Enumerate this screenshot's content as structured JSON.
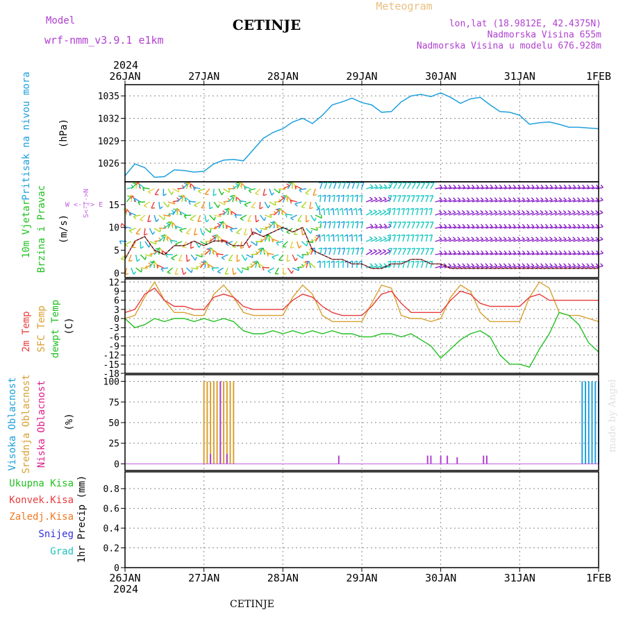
{
  "header": {
    "model_label": "Model",
    "model_name": "wrf-nmm_v3.9.1 e1km",
    "station": "CETINJE",
    "product": "Meteogram",
    "lonlat": "lon,lat (18.9812E, 42.4375N)",
    "altitude": "Nadmorska Visina 655m",
    "model_altitude": "Nadmorska Visina u modelu 676.928m",
    "year_top": "2024",
    "year_bottom": "2024",
    "footer_station": "CETINJE",
    "watermark": "made by Angel"
  },
  "time_axis": {
    "labels": [
      "26JAN",
      "27JAN",
      "28JAN",
      "29JAN",
      "30JAN",
      "31JAN",
      "1FEB"
    ]
  },
  "colors": {
    "pressure": "#1ea0dc",
    "temp2m": "#e83c3c",
    "sfc": "#d8a030",
    "dewpt": "#22c022",
    "violet": "#b040d0",
    "wind_dir_label": "#c060e0",
    "grad": "#20c0c0",
    "snow": "#3030e0",
    "freezing": "#f07820"
  },
  "panels": {
    "pressure": {
      "ylabel_var": "Pritisak na nivou mora",
      "ylabel_unit": "(hPa)",
      "ticks": [
        "1026",
        "1029",
        "1032",
        "1035"
      ]
    },
    "wind": {
      "ylabel_var1": "10m Vjetar",
      "ylabel_var2": "Brzina i Pravac",
      "ylabel_unit": "(m/s)",
      "ticks": [
        "0",
        "5",
        "10",
        "15"
      ],
      "dir_label": "W <-|-> E",
      "dir_label2": "S<-|->N"
    },
    "temp": {
      "ylabel_var1": "2m Temp",
      "ylabel_var2": "SFC Temp",
      "ylabel_var3": "dewpt Temp",
      "ylabel_unit": "(C)",
      "ticks": [
        "-18",
        "-15",
        "-12",
        "-9",
        "-6",
        "-3",
        "0",
        "3",
        "6",
        "9",
        "12"
      ]
    },
    "cloud": {
      "ylabel_var1": "Visoka Oblacnost",
      "ylabel_var2": "Srednja Oblacnost",
      "ylabel_var3": "Niska Oblacnost",
      "ylabel_unit": "(%)",
      "ticks": [
        "0",
        "25",
        "50",
        "75",
        "100"
      ]
    },
    "precip": {
      "legend": [
        "Ukupna Kisa",
        "Konvek.Kisa",
        "Zaledj.Kisa",
        "Snijeg",
        "Grad"
      ],
      "ylabel": "1hr Precip (mm)",
      "ticks": [
        "0",
        "0.2",
        "0.4",
        "0.6",
        "0.8"
      ]
    }
  },
  "chart_data": [
    {
      "type": "line",
      "name": "pressure",
      "x_hours": [
        0,
        3,
        6,
        9,
        12,
        15,
        18,
        21,
        24,
        27,
        30,
        33,
        36,
        39,
        42,
        45,
        48,
        51,
        54,
        57,
        60,
        63,
        66,
        69,
        72,
        75,
        78,
        81,
        84,
        87,
        90,
        93,
        96,
        99,
        102,
        105,
        108,
        111,
        114,
        117,
        120,
        123,
        126,
        129,
        132,
        135,
        138,
        141,
        144
      ],
      "values": [
        1024.3,
        1025.9,
        1025.4,
        1024.1,
        1024.2,
        1025.1,
        1025.0,
        1024.8,
        1024.9,
        1025.9,
        1026.4,
        1026.5,
        1026.3,
        1027.8,
        1029.3,
        1030.1,
        1030.6,
        1031.5,
        1032.0,
        1031.3,
        1032.4,
        1033.8,
        1034.2,
        1034.7,
        1034.1,
        1033.8,
        1032.8,
        1032.9,
        1034.2,
        1035.0,
        1035.2,
        1034.9,
        1035.4,
        1034.8,
        1034.0,
        1034.6,
        1034.8,
        1033.8,
        1032.9,
        1032.8,
        1032.4,
        1031.2,
        1031.4,
        1031.5,
        1031.2,
        1030.8,
        1030.8,
        1030.7,
        1030.6
      ],
      "ylim": [
        1023.5,
        1036.5
      ]
    },
    {
      "type": "line",
      "name": "wind_speed",
      "x_hours": [
        0,
        3,
        6,
        9,
        12,
        15,
        18,
        21,
        24,
        27,
        30,
        33,
        36,
        39,
        42,
        45,
        48,
        51,
        54,
        57,
        60,
        63,
        66,
        69,
        72,
        75,
        78,
        81,
        84,
        87,
        90,
        93,
        96,
        99,
        102,
        105,
        108,
        111,
        114,
        117,
        120,
        123,
        126,
        129,
        132,
        135,
        138,
        141,
        144
      ],
      "values": [
        3,
        7,
        8,
        5,
        4,
        6,
        6,
        7,
        6,
        7,
        7,
        6,
        6,
        9,
        8,
        9,
        10,
        9,
        10,
        5,
        4,
        3,
        3,
        2,
        2,
        1,
        1,
        2,
        2,
        3,
        3,
        2,
        2,
        1,
        1,
        1,
        1,
        1,
        1,
        1,
        1,
        1,
        1,
        1,
        1,
        1,
        1,
        1,
        1
      ],
      "ylim": [
        -1,
        20
      ]
    },
    {
      "type": "line",
      "name": "temp_2m",
      "x_hours": [
        0,
        3,
        6,
        9,
        12,
        15,
        18,
        21,
        24,
        27,
        30,
        33,
        36,
        39,
        42,
        45,
        48,
        51,
        54,
        57,
        60,
        63,
        66,
        69,
        72,
        75,
        78,
        81,
        84,
        87,
        90,
        93,
        96,
        99,
        102,
        105,
        108,
        111,
        114,
        117,
        120,
        123,
        126,
        129,
        132,
        135,
        138,
        141,
        144
      ],
      "values": [
        2,
        3,
        8,
        10,
        6,
        4,
        4,
        3,
        3,
        7,
        8,
        7,
        4,
        3,
        3,
        3,
        3,
        6,
        8,
        7,
        4,
        2,
        1,
        1,
        1,
        4,
        8,
        9,
        5,
        2,
        2,
        2,
        2,
        6,
        9,
        8,
        5,
        4,
        4,
        4,
        4,
        7,
        8,
        6,
        6,
        6,
        6,
        6,
        6
      ],
      "ylim": [
        -18,
        13
      ]
    },
    {
      "type": "line",
      "name": "temp_sfc",
      "x_hours": [
        0,
        3,
        6,
        9,
        12,
        15,
        18,
        21,
        24,
        27,
        30,
        33,
        36,
        39,
        42,
        45,
        48,
        51,
        54,
        57,
        60,
        63,
        66,
        69,
        72,
        75,
        78,
        81,
        84,
        87,
        90,
        93,
        96,
        99,
        102,
        105,
        108,
        111,
        114,
        117,
        120,
        123,
        126,
        129,
        132,
        135,
        138,
        141,
        144
      ],
      "values": [
        0,
        1,
        7,
        12,
        6,
        2,
        2,
        1,
        1,
        8,
        11,
        7,
        2,
        1,
        1,
        1,
        1,
        7,
        11,
        8,
        1,
        -1,
        -1,
        -1,
        -1,
        5,
        11,
        10,
        1,
        0,
        0,
        -1,
        0,
        7,
        11,
        9,
        2,
        -1,
        -1,
        -1,
        -1,
        7,
        12,
        10,
        2,
        1,
        1,
        0,
        -1
      ],
      "ylim": [
        -18,
        13
      ]
    },
    {
      "type": "line",
      "name": "temp_dewpt",
      "x_hours": [
        0,
        3,
        6,
        9,
        12,
        15,
        18,
        21,
        24,
        27,
        30,
        33,
        36,
        39,
        42,
        45,
        48,
        51,
        54,
        57,
        60,
        63,
        66,
        69,
        72,
        75,
        78,
        81,
        84,
        87,
        90,
        93,
        96,
        99,
        102,
        105,
        108,
        111,
        114,
        117,
        120,
        123,
        126,
        129,
        132,
        135,
        138,
        141,
        144
      ],
      "values": [
        0,
        -3,
        -2,
        0,
        -1,
        0,
        0,
        -1,
        0,
        -1,
        0,
        -1,
        -4,
        -5,
        -5,
        -4,
        -5,
        -4,
        -5,
        -4,
        -5,
        -4,
        -5,
        -5,
        -6,
        -6,
        -5,
        -5,
        -6,
        -5,
        -7,
        -9,
        -13,
        -10,
        -7,
        -5,
        -4,
        -6,
        -12,
        -15,
        -15,
        -16,
        -10,
        -5,
        2,
        1,
        -2,
        -8,
        -11
      ],
      "ylim": [
        -18,
        13
      ]
    },
    {
      "type": "bar",
      "name": "cloud_cover",
      "series": [
        {
          "name": "Srednja Oblacnost",
          "x_hours": [
            24,
            25,
            26,
            27,
            28,
            29,
            30,
            31,
            32,
            33
          ],
          "values": [
            100,
            100,
            100,
            100,
            100,
            100,
            100,
            100,
            100,
            100
          ]
        },
        {
          "name": "Niska Oblacnost",
          "x_hours": [
            26,
            29,
            31,
            65,
            92,
            93,
            96,
            98,
            101,
            109,
            110
          ],
          "values": [
            12,
            100,
            12,
            10,
            10,
            10,
            10,
            10,
            8,
            10,
            10
          ]
        },
        {
          "name": "Visoka Oblacnost",
          "x_hours": [
            139,
            140,
            141,
            142,
            143,
            144
          ],
          "values": [
            100,
            100,
            100,
            100,
            100,
            100
          ]
        }
      ],
      "ylim": [
        -8,
        108
      ]
    },
    {
      "type": "bar",
      "name": "precip_1hr",
      "series": [],
      "ylim": [
        0,
        0.97
      ]
    }
  ]
}
